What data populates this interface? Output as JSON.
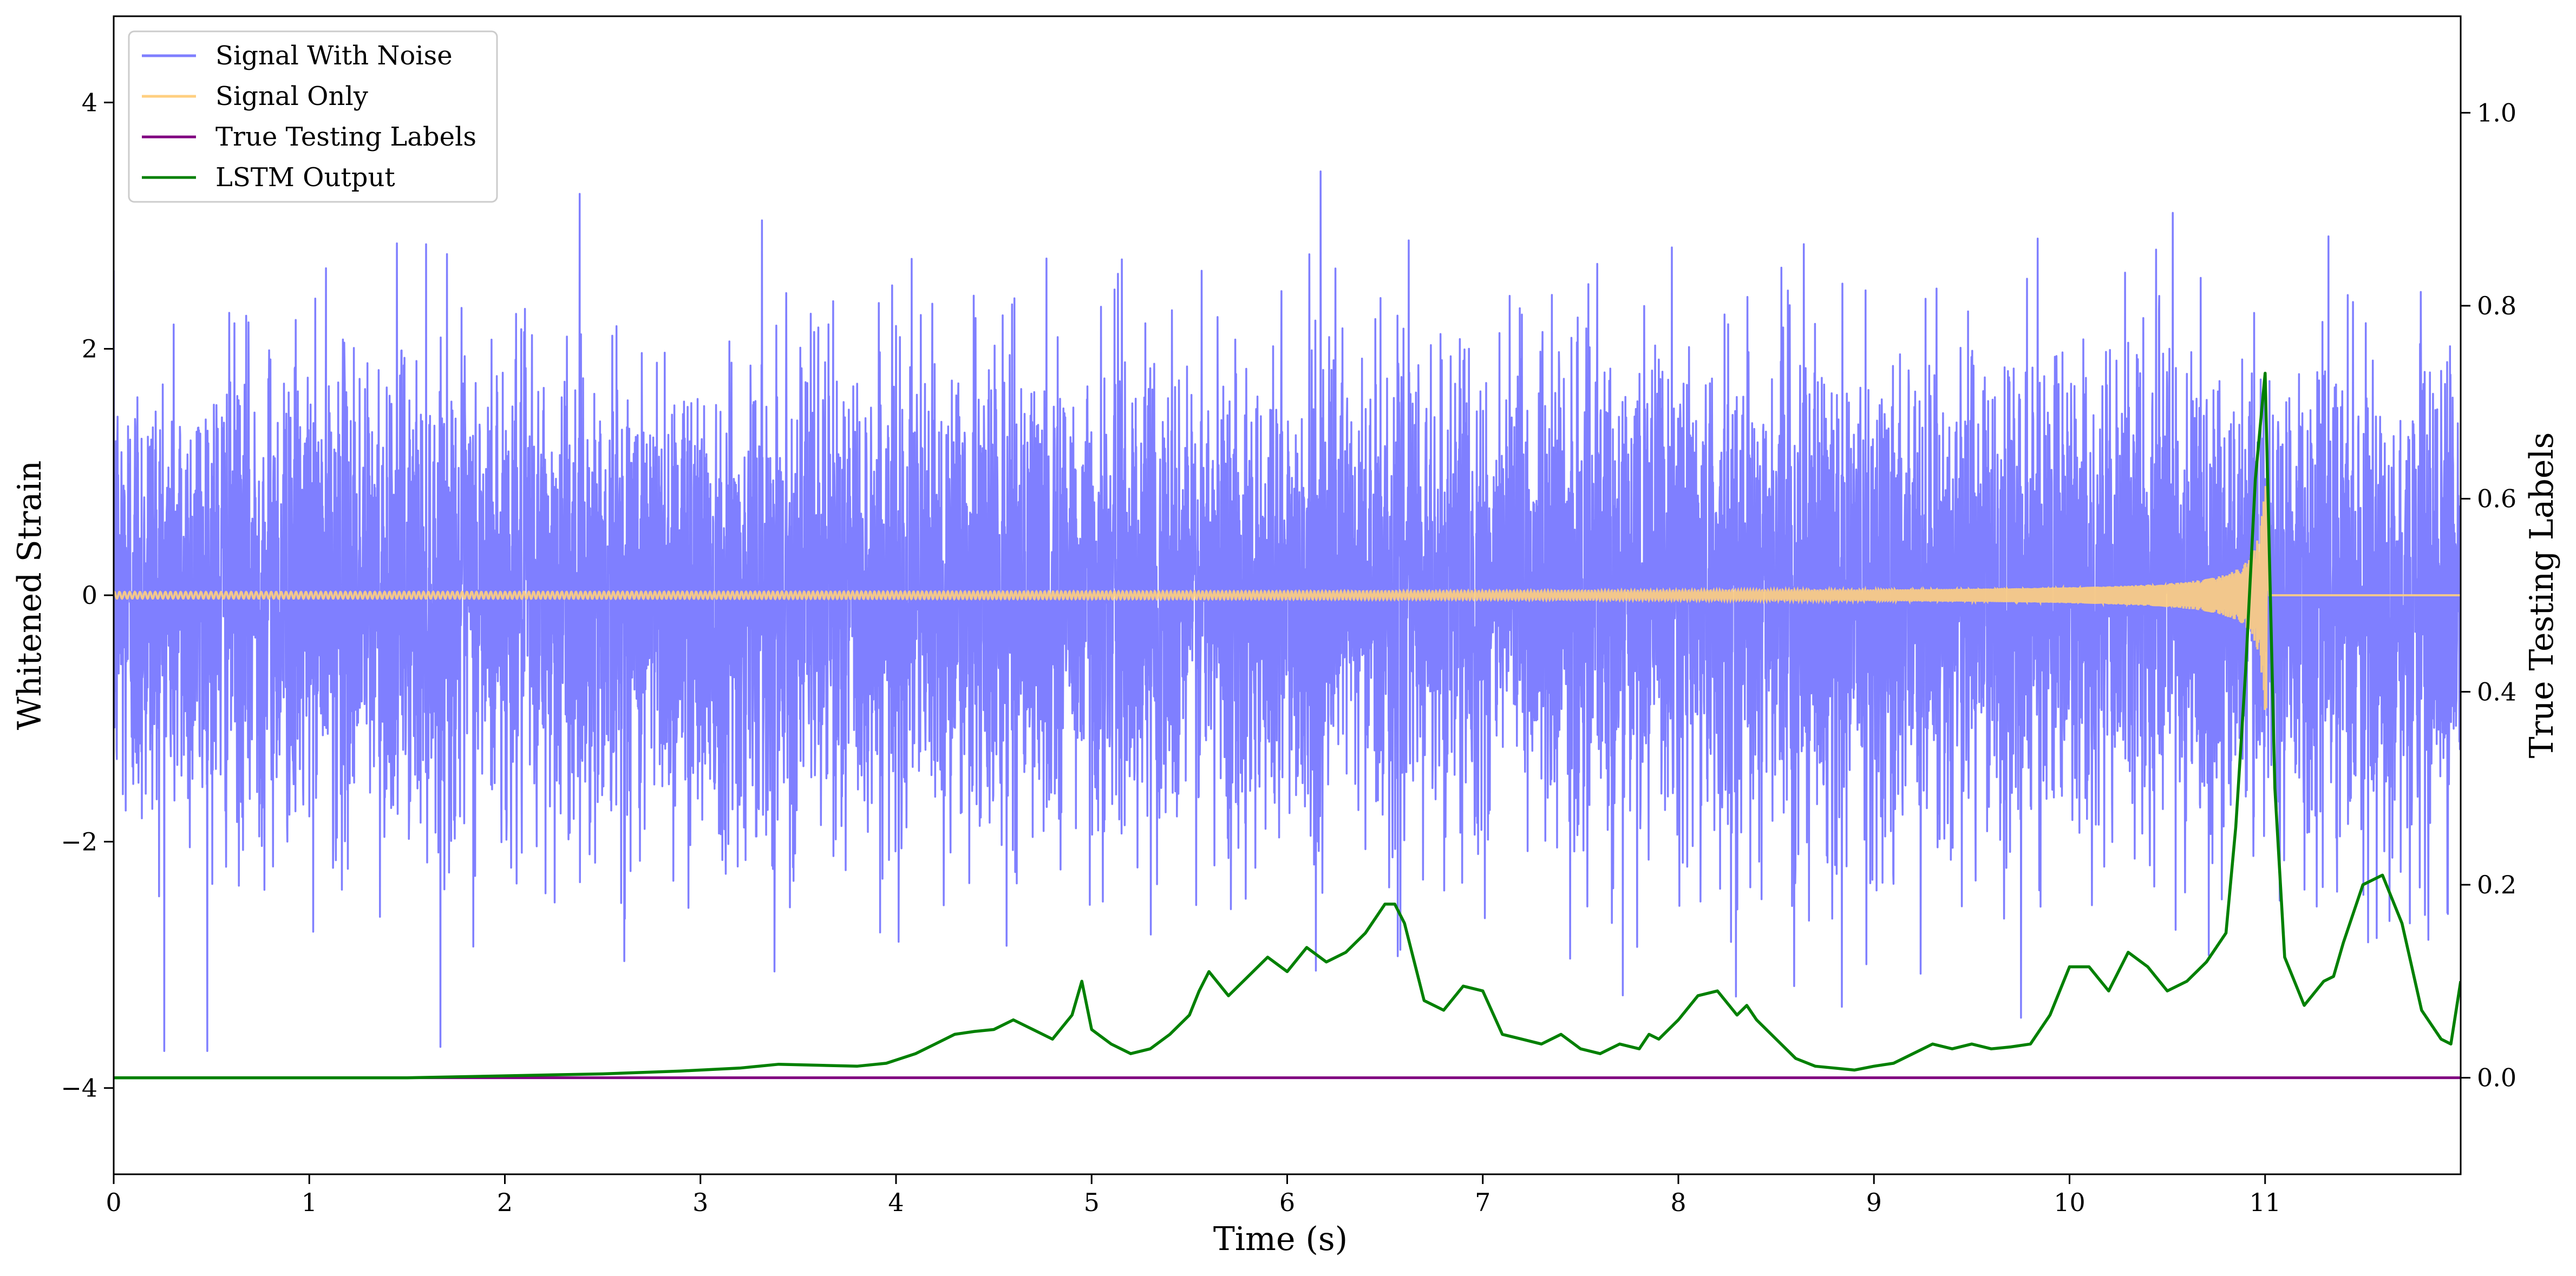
{
  "chart_data": {
    "type": "line",
    "xlabel": "Time (s)",
    "ylabel": "Whitened Strain",
    "ylabel_right": "True Testing Labels",
    "xlim": [
      0,
      12
    ],
    "ylim": [
      -4.7,
      4.7
    ],
    "ylim_right": [
      -0.1,
      1.1
    ],
    "x_ticks": [
      0,
      1,
      2,
      3,
      4,
      5,
      6,
      7,
      8,
      9,
      10,
      11
    ],
    "x_tick_labels": [
      "0",
      "1",
      "2",
      "3",
      "4",
      "5",
      "6",
      "7",
      "8",
      "9",
      "10",
      "11"
    ],
    "y_ticks": [
      -4,
      -2,
      0,
      2,
      4
    ],
    "y_tick_labels": [
      "−4",
      "−2",
      "0",
      "2",
      "4"
    ],
    "y_ticks_right": [
      0.0,
      0.2,
      0.4,
      0.6,
      0.8,
      1.0
    ],
    "y_tick_labels_right": [
      "0.0",
      "0.2",
      "0.4",
      "0.6",
      "0.8",
      "1.0"
    ],
    "grid": false,
    "legend_position": "top-left",
    "series": [
      {
        "name": "Signal With Noise",
        "axis": "left",
        "color": "#7f7fff",
        "kind": "noise",
        "std": 0.95,
        "x_range": [
          0,
          12
        ],
        "max": 3.8,
        "min": -3.7
      },
      {
        "name": "Signal Only",
        "axis": "left",
        "color": "#ffcf80",
        "kind": "chirp",
        "start_amplitude": 0.02,
        "peak_amplitude": 0.95,
        "merger_time": 11.02
      },
      {
        "name": "True Testing Labels",
        "axis": "right",
        "color": "#800080",
        "x": [
          0,
          12
        ],
        "y": [
          0.0,
          0.0
        ]
      },
      {
        "name": "LSTM Output",
        "axis": "right",
        "color": "#008000",
        "x": [
          0,
          1.5,
          2.0,
          2.5,
          2.9,
          3.2,
          3.4,
          3.6,
          3.8,
          3.95,
          4.1,
          4.2,
          4.3,
          4.4,
          4.5,
          4.6,
          4.7,
          4.8,
          4.9,
          4.95,
          5.0,
          5.1,
          5.2,
          5.3,
          5.4,
          5.5,
          5.55,
          5.6,
          5.7,
          5.8,
          5.9,
          6.0,
          6.1,
          6.2,
          6.3,
          6.4,
          6.5,
          6.55,
          6.6,
          6.7,
          6.8,
          6.9,
          7.0,
          7.1,
          7.2,
          7.3,
          7.4,
          7.5,
          7.6,
          7.7,
          7.8,
          7.85,
          7.9,
          8.0,
          8.1,
          8.2,
          8.3,
          8.35,
          8.4,
          8.5,
          8.6,
          8.7,
          8.8,
          8.9,
          9.0,
          9.1,
          9.2,
          9.3,
          9.4,
          9.5,
          9.6,
          9.7,
          9.8,
          9.9,
          10.0,
          10.1,
          10.2,
          10.3,
          10.4,
          10.5,
          10.6,
          10.7,
          10.8,
          10.85,
          10.9,
          10.95,
          11.0,
          11.05,
          11.1,
          11.2,
          11.3,
          11.35,
          11.4,
          11.5,
          11.6,
          11.7,
          11.8,
          11.9,
          11.95,
          12.0
        ],
        "y": [
          0.0,
          0.0,
          0.002,
          0.004,
          0.007,
          0.01,
          0.014,
          0.013,
          0.012,
          0.015,
          0.025,
          0.035,
          0.045,
          0.048,
          0.05,
          0.06,
          0.05,
          0.04,
          0.065,
          0.1,
          0.05,
          0.035,
          0.025,
          0.03,
          0.045,
          0.065,
          0.09,
          0.11,
          0.085,
          0.105,
          0.125,
          0.11,
          0.135,
          0.12,
          0.13,
          0.15,
          0.18,
          0.18,
          0.16,
          0.08,
          0.07,
          0.095,
          0.09,
          0.045,
          0.04,
          0.035,
          0.045,
          0.03,
          0.025,
          0.035,
          0.03,
          0.045,
          0.04,
          0.06,
          0.085,
          0.09,
          0.065,
          0.075,
          0.06,
          0.04,
          0.02,
          0.012,
          0.01,
          0.008,
          0.012,
          0.015,
          0.025,
          0.035,
          0.03,
          0.035,
          0.03,
          0.032,
          0.035,
          0.065,
          0.115,
          0.115,
          0.09,
          0.13,
          0.115,
          0.09,
          0.1,
          0.12,
          0.15,
          0.26,
          0.42,
          0.62,
          0.73,
          0.3,
          0.125,
          0.075,
          0.1,
          0.105,
          0.14,
          0.2,
          0.21,
          0.16,
          0.07,
          0.04,
          0.035,
          0.1
        ]
      }
    ]
  }
}
